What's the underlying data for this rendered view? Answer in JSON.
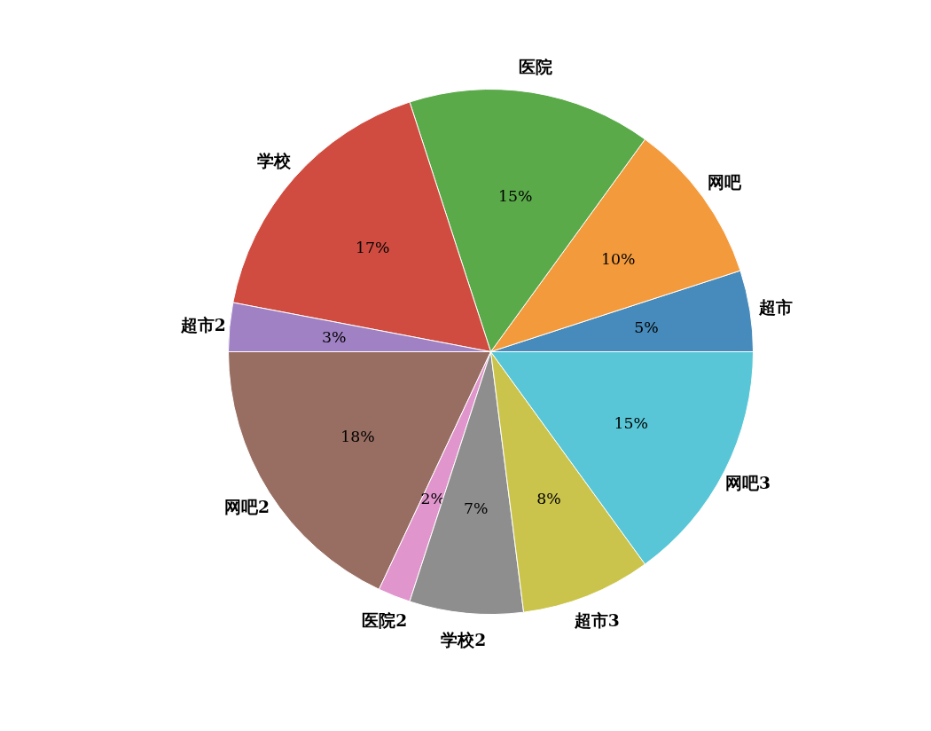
{
  "chart_data": {
    "type": "pie",
    "categories": [
      "超市",
      "网吧",
      "医院",
      "学校",
      "超市2",
      "网吧2",
      "医院2",
      "学校2",
      "超市3",
      "网吧3"
    ],
    "values": [
      5,
      10,
      15,
      17,
      3,
      18,
      2,
      7,
      8,
      15
    ],
    "value_labels": [
      "5%",
      "10%",
      "15%",
      "17%",
      "3%",
      "18%",
      "2%",
      "7%",
      "8%",
      "15%"
    ],
    "colors": [
      "#468bbb",
      "#f39a3c",
      "#5aaa4a",
      "#d04c40",
      "#a082c4",
      "#986e62",
      "#e096cc",
      "#8e8e8e",
      "#cbc44c",
      "#58c6d6"
    ]
  }
}
